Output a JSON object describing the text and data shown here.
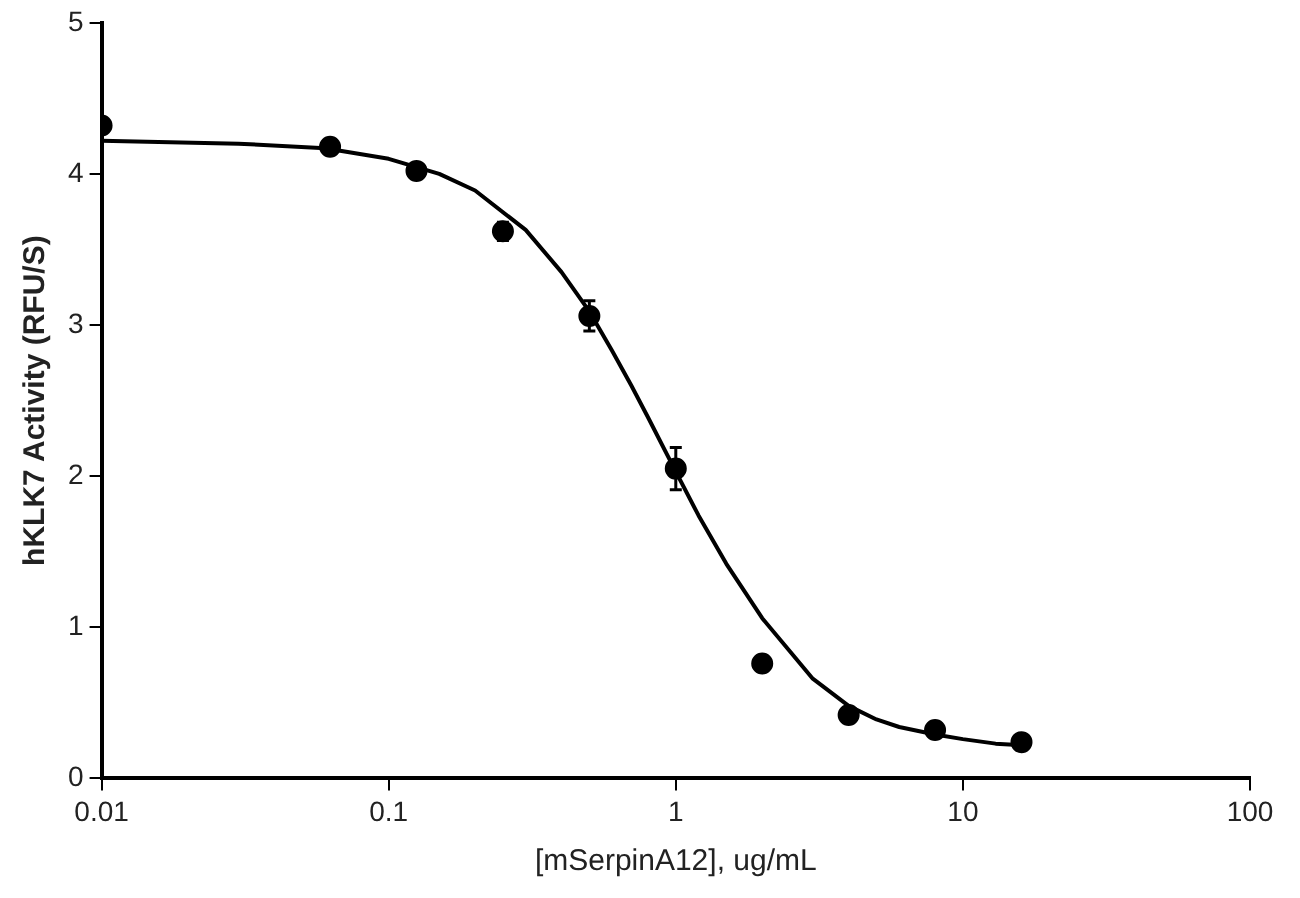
{
  "chart_data": {
    "type": "scatter",
    "xlabel": "[mSerpinA12], ug/mL",
    "ylabel": "hKLK7 Activity (RFU/S)",
    "log": "x",
    "xlim": [
      0.01,
      100
    ],
    "xticks": [
      0.01,
      0.1,
      1,
      10,
      100
    ],
    "ylim": [
      0,
      5
    ],
    "yticks": [
      0,
      1,
      2,
      3,
      4,
      5
    ],
    "grid": false,
    "legend": false,
    "marker": "circle",
    "series": [
      {
        "color": "#000000",
        "x": [
          0.01,
          0.0625,
          0.125,
          0.25,
          0.5,
          1,
          2,
          4,
          8,
          16
        ],
        "values": [
          4.32,
          4.18,
          4.02,
          3.62,
          3.06,
          2.05,
          0.76,
          0.42,
          0.32,
          0.24
        ],
        "errors": [
          null,
          null,
          null,
          0.06,
          0.1,
          0.14,
          null,
          null,
          null,
          null
        ]
      },
      {
        "type": "line",
        "color": "#000000",
        "marker": "none",
        "x": [
          0.01,
          0.03,
          0.06,
          0.1,
          0.15,
          0.2,
          0.3,
          0.4,
          0.5,
          0.6,
          0.7,
          0.8,
          1,
          1.2,
          1.5,
          2,
          2.5,
          3,
          4,
          5,
          6,
          8,
          10,
          13,
          16
        ],
        "values": [
          4.22,
          4.2,
          4.17,
          4.1,
          4.0,
          3.89,
          3.63,
          3.35,
          3.09,
          2.83,
          2.6,
          2.39,
          2.03,
          1.74,
          1.42,
          1.06,
          0.84,
          0.66,
          0.48,
          0.39,
          0.34,
          0.29,
          0.26,
          0.23,
          0.22
        ]
      }
    ]
  }
}
